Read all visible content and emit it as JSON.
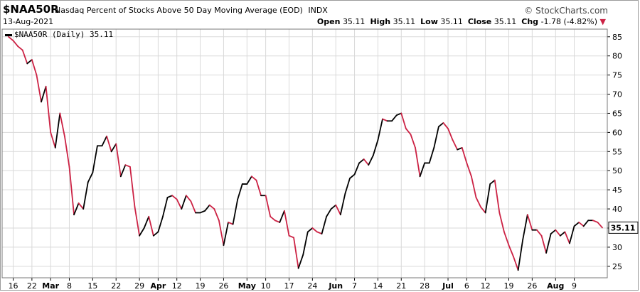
{
  "header": {
    "symbol": "$NAA50R",
    "name": "Nasdaq Percent of Stocks Above 50 Day Moving Average (EOD)",
    "exchange": "INDX",
    "watermark": "© StockCharts.com",
    "date": "13-Aug-2021",
    "open_label": "Open",
    "open": "35.11",
    "high_label": "High",
    "high": "35.11",
    "low_label": "Low",
    "low": "35.11",
    "close_label": "Close",
    "close": "35.11",
    "chg_label": "Chg",
    "chg": "-1.78 (-4.82%)",
    "chg_arrow": "▼"
  },
  "legend": {
    "label": "$NAA50R (Daily) 35.11"
  },
  "colors": {
    "up": "#000000",
    "down": "#cc2244",
    "grid": "#d9d9d9",
    "axis": "#000000",
    "last_price_box": "#000000"
  },
  "chart_data": {
    "type": "line",
    "title": "Nasdaq Percent of Stocks Above 50 Day Moving Average (EOD)",
    "series": [
      {
        "name": "$NAA50R (Daily)",
        "values": [
          85,
          84,
          82.5,
          81.5,
          78,
          79,
          75,
          68,
          72,
          60,
          56,
          65,
          59,
          51,
          38.5,
          41.5,
          40,
          47,
          49.5,
          56.5,
          56.5,
          59,
          55,
          57,
          48.5,
          51.5,
          51,
          40.5,
          33,
          35,
          38,
          33,
          34,
          38,
          43,
          43.5,
          42.5,
          40,
          43.5,
          42,
          39,
          39,
          39.5,
          41,
          40,
          37,
          30.5,
          36.5,
          36,
          42.5,
          46.5,
          46.5,
          48.5,
          47.5,
          43.5,
          43.5,
          38,
          37,
          36.5,
          39.5,
          33,
          32.5,
          24.5,
          28,
          34,
          35,
          34,
          33.5,
          38,
          40,
          41,
          38.5,
          44,
          48,
          49,
          52,
          53,
          51.5,
          54,
          58,
          63.5,
          63,
          63,
          64.5,
          65,
          61,
          59.5,
          56,
          48.5,
          52,
          52,
          56,
          61.5,
          62.5,
          61,
          58,
          55.5,
          56,
          52,
          48.5,
          43,
          40.5,
          39,
          46.5,
          47.5,
          39,
          34,
          30.5,
          27.5,
          24,
          32,
          38.5,
          34.5,
          34.5,
          33,
          28.5,
          33.5,
          34.5,
          33,
          34,
          31,
          35.5,
          36.5,
          35.5,
          37,
          37,
          36.5,
          35.11
        ]
      }
    ],
    "x_tick_labels": [
      "16",
      "22",
      "Mar",
      "8",
      "15",
      "22",
      "29",
      "Apr",
      "12",
      "19",
      "26",
      "May",
      "10",
      "17",
      "24",
      "Jun",
      "7",
      "14",
      "21",
      "28",
      "Jul",
      "6",
      "12",
      "19",
      "26",
      "Aug",
      "9"
    ],
    "x_tick_bold": [
      "Mar",
      "Apr",
      "May",
      "Jun",
      "Jul",
      "Aug"
    ],
    "y_ticks": [
      25,
      30,
      35,
      40,
      45,
      50,
      55,
      60,
      65,
      70,
      75,
      80,
      85
    ],
    "ylim": [
      22,
      87
    ],
    "last_value_label": "35.11",
    "grid": true,
    "legend_position": "top-left",
    "color_rule": "red when the value falls versus the prior session, black when it rises"
  }
}
